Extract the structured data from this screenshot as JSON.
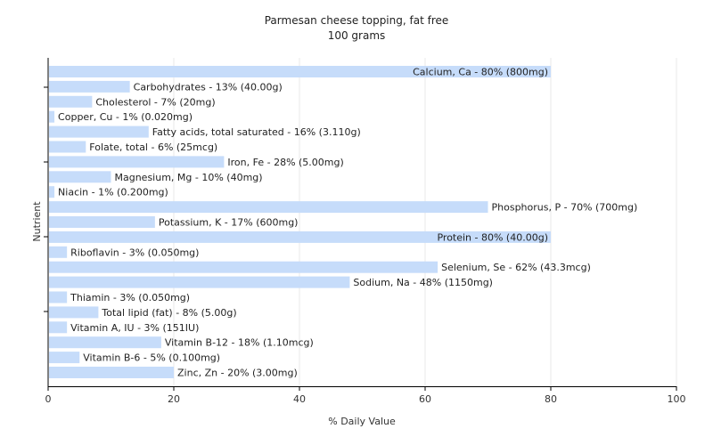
{
  "chart_data": {
    "type": "bar",
    "orientation": "horizontal",
    "title": "Parmesan cheese topping, fat free",
    "subtitle": "100 grams",
    "xlabel": "% Daily Value",
    "ylabel": "Nutrient",
    "xlim": [
      0,
      100
    ],
    "xticks": [
      "0",
      "20",
      "40",
      "60",
      "80",
      "100"
    ],
    "grid": true,
    "bar_color": "#c6dcfa",
    "categories": [
      "Calcium, Ca",
      "Carbohydrates",
      "Cholesterol",
      "Copper, Cu",
      "Fatty acids, total saturated",
      "Folate, total",
      "Iron, Fe",
      "Magnesium, Mg",
      "Niacin",
      "Phosphorus, P",
      "Potassium, K",
      "Protein",
      "Riboflavin",
      "Selenium, Se",
      "Sodium, Na",
      "Thiamin",
      "Total lipid (fat)",
      "Vitamin A, IU",
      "Vitamin B-12",
      "Vitamin B-6",
      "Zinc, Zn"
    ],
    "values": [
      80,
      13,
      7,
      1,
      16,
      6,
      28,
      10,
      1,
      70,
      17,
      80,
      3,
      62,
      48,
      3,
      8,
      3,
      18,
      5,
      20
    ],
    "labels": [
      "Calcium, Ca - 80% (800mg)",
      "Carbohydrates - 13% (40.00g)",
      "Cholesterol - 7% (20mg)",
      "Copper, Cu - 1% (0.020mg)",
      "Fatty acids, total saturated - 16% (3.110g)",
      "Folate, total - 6% (25mcg)",
      "Iron, Fe - 28% (5.00mg)",
      "Magnesium, Mg - 10% (40mg)",
      "Niacin - 1% (0.200mg)",
      "Phosphorus, P - 70% (700mg)",
      "Potassium, K - 17% (600mg)",
      "Protein - 80% (40.00g)",
      "Riboflavin - 3% (0.050mg)",
      "Selenium, Se - 62% (43.3mcg)",
      "Sodium, Na - 48% (1150mg)",
      "Thiamin - 3% (0.050mg)",
      "Total lipid (fat) - 8% (5.00g)",
      "Vitamin A, IU - 3% (151IU)",
      "Vitamin B-12 - 18% (1.10mcg)",
      "Vitamin B-6 - 5% (0.100mg)",
      "Zinc, Zn - 20% (3.00mg)"
    ]
  }
}
